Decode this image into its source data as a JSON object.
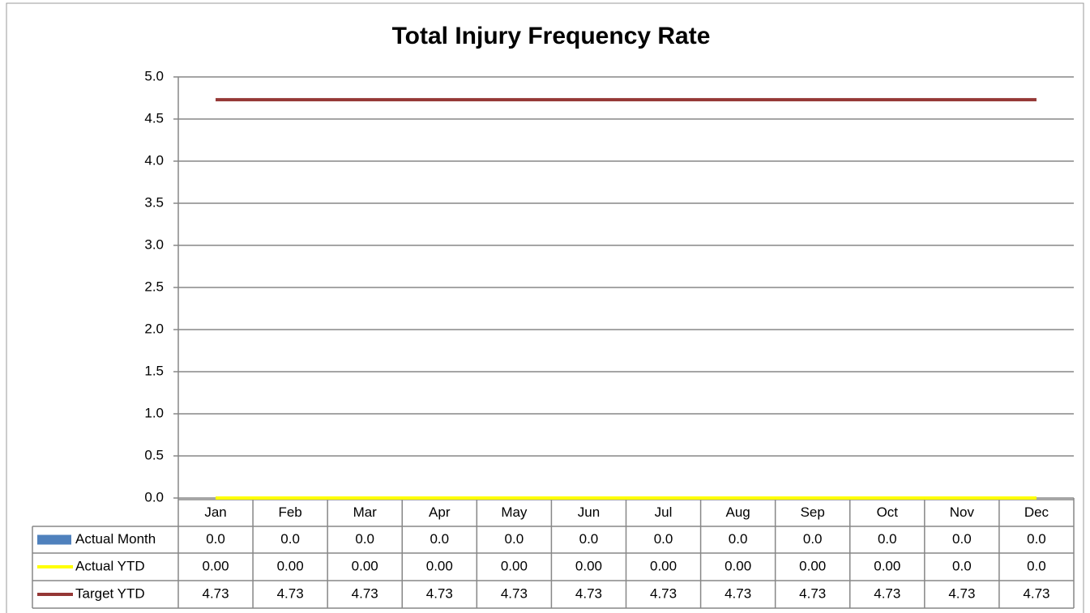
{
  "chart_data": {
    "type": "bar",
    "title": "Total Injury Frequency Rate",
    "categories": [
      "Jan",
      "Feb",
      "Mar",
      "Apr",
      "May",
      "Jun",
      "Jul",
      "Aug",
      "Sep",
      "Oct",
      "Nov",
      "Dec"
    ],
    "series": [
      {
        "name": "Actual Month",
        "type": "bar",
        "color": "#4f81bd",
        "values": [
          0,
          0,
          0,
          0,
          0,
          0,
          0,
          0,
          0,
          0,
          0,
          0
        ],
        "value_labels": [
          "0.0",
          "0.0",
          "0.0",
          "0.0",
          "0.0",
          "0.0",
          "0.0",
          "0.0",
          "0.0",
          "0.0",
          "0.0",
          "0.0"
        ]
      },
      {
        "name": "Actual YTD",
        "type": "line",
        "color": "#ffff00",
        "values": [
          0,
          0,
          0,
          0,
          0,
          0,
          0,
          0,
          0,
          0,
          0,
          0
        ],
        "value_labels": [
          "0.00",
          "0.00",
          "0.00",
          "0.00",
          "0.00",
          "0.00",
          "0.00",
          "0.00",
          "0.00",
          "0.00",
          "0.0",
          "0.0"
        ]
      },
      {
        "name": "Target YTD",
        "type": "line",
        "color": "#953735",
        "values": [
          4.73,
          4.73,
          4.73,
          4.73,
          4.73,
          4.73,
          4.73,
          4.73,
          4.73,
          4.73,
          4.73,
          4.73
        ]
      }
    ],
    "ylim": [
      0,
      5
    ],
    "yticks": [
      {
        "value": 0,
        "label": "0.0"
      },
      0.5,
      {
        "value": 1,
        "label": "1.0"
      },
      1.5,
      {
        "value": 2,
        "label": "2.0"
      },
      2.5,
      {
        "value": 3,
        "label": "3.0"
      },
      3.5,
      {
        "value": 4,
        "label": "4.0"
      },
      4.5,
      {
        "value": 5,
        "label": "5.0"
      }
    ],
    "grid": true,
    "data_table": true
  }
}
